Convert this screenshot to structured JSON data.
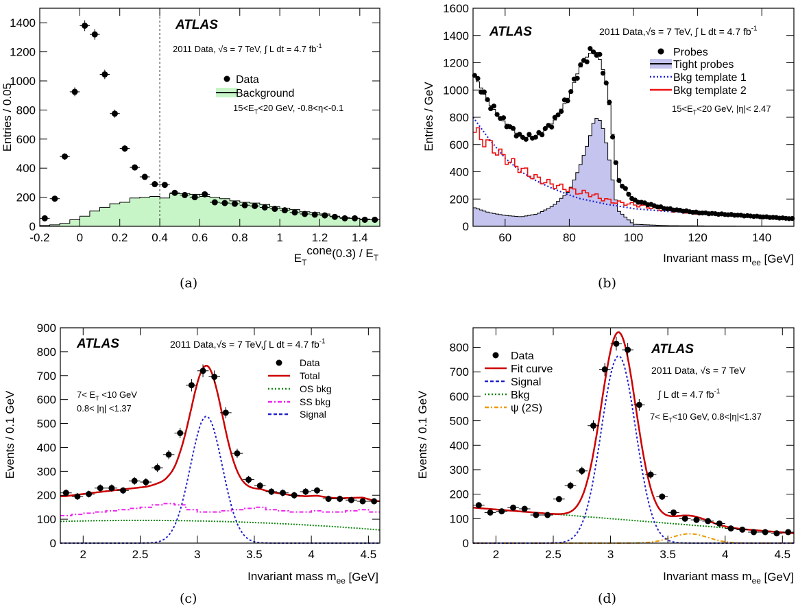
{
  "colors": {
    "data": "#000000",
    "bkg_fill": "#c8f5c8",
    "tight_fill": "#c4c4ee",
    "bkg1": "#1f1fd8",
    "bkg2": "#ee1111",
    "total": "#cc0000",
    "os_bkg": "#118811",
    "ss_bkg": "#ee22ee",
    "signal": "#2222cc",
    "psi2s": "#ee9900"
  },
  "captions": [
    "(a)",
    "(b)",
    "(c)",
    "(d)"
  ],
  "chart_data": [
    {
      "type": "bar",
      "caption": "(a)",
      "xlabel": "E_T^cone(0.3) / E_T",
      "ylabel": "Entries / 0.05",
      "xlim": [
        -0.2,
        1.5
      ],
      "ylim": [
        0,
        1500
      ],
      "xticks": [
        -0.2,
        0,
        0.2,
        0.4,
        0.6,
        0.8,
        1,
        1.2,
        1.4
      ],
      "xtick_labels": [
        "-0.2",
        "0",
        "0.2",
        "0.4",
        "0.6",
        "0.8",
        "1",
        "1.2",
        "1.4"
      ],
      "yticks": [
        0,
        200,
        400,
        600,
        800,
        1000,
        1200,
        1400
      ],
      "atlas_label": "ATLAS",
      "info_text": "2011 Data,    √s = 7 TeV,   ∫ L dt = 4.7 fb",
      "info_sup": "-1",
      "cut_text": "15<E_T<20 GeV, -0.8<η<-0.1",
      "legend": [
        {
          "label": "Data",
          "style": "marker"
        },
        {
          "label": "Background",
          "style": "fill"
        }
      ],
      "cut_line_x": 0.4,
      "data_x": [
        -0.175,
        -0.125,
        -0.075,
        -0.025,
        0.025,
        0.075,
        0.125,
        0.175,
        0.225,
        0.275,
        0.325,
        0.375,
        0.425,
        0.475,
        0.525,
        0.575,
        0.625,
        0.675,
        0.725,
        0.775,
        0.825,
        0.875,
        0.925,
        0.975,
        1.025,
        1.075,
        1.125,
        1.175,
        1.225,
        1.275,
        1.325,
        1.375,
        1.425,
        1.475
      ],
      "data_y": [
        55,
        190,
        480,
        925,
        1380,
        1320,
        1045,
        775,
        535,
        405,
        340,
        290,
        285,
        230,
        215,
        200,
        220,
        165,
        160,
        155,
        145,
        140,
        130,
        120,
        110,
        95,
        85,
        80,
        75,
        65,
        55,
        55,
        45,
        45
      ],
      "background_y": [
        5,
        10,
        20,
        45,
        70,
        105,
        130,
        155,
        165,
        195,
        200,
        205,
        195,
        225,
        225,
        220,
        205,
        200,
        190,
        175,
        165,
        160,
        150,
        135,
        125,
        115,
        100,
        95,
        85,
        70,
        60,
        55,
        50,
        45
      ]
    },
    {
      "type": "line",
      "caption": "(b)",
      "xlabel": "Invariant mass m_ee [GeV]",
      "ylabel": "Entries / GeV",
      "xlim": [
        50,
        150
      ],
      "ylim": [
        0,
        1600
      ],
      "xticks": [
        60,
        80,
        100,
        120,
        140
      ],
      "yticks": [
        0,
        200,
        400,
        600,
        800,
        1000,
        1200,
        1400,
        1600
      ],
      "atlas_label": "ATLAS",
      "info_text": "2011 Data,√s = 7 TeV, ∫ L dt = 4.7 fb",
      "info_sup": "-1",
      "cut_text": "15<E_T<20 GeV,  |η|< 2.47",
      "legend": [
        {
          "label": "Probes",
          "style": "marker"
        },
        {
          "label": "Tight probes",
          "style": "fill"
        },
        {
          "label": "Bkg template 1",
          "style": "dotted"
        },
        {
          "label": "Bkg template 2",
          "style": "solid"
        }
      ],
      "mass_x": [
        50,
        55,
        60,
        65,
        70,
        75,
        80,
        83,
        86,
        88,
        90,
        92,
        95,
        100,
        110,
        120,
        130,
        140,
        150
      ],
      "probes_y": [
        1130,
        900,
        760,
        650,
        660,
        760,
        960,
        1150,
        1260,
        1300,
        1200,
        1000,
        350,
        190,
        130,
        100,
        85,
        70,
        55
      ],
      "tight_y": [
        140,
        100,
        80,
        70,
        90,
        150,
        260,
        420,
        620,
        800,
        770,
        560,
        120,
        15,
        5,
        3,
        2,
        1,
        1
      ],
      "bkg1_y": [
        800,
        640,
        500,
        400,
        330,
        275,
        230,
        205,
        190,
        180,
        170,
        160,
        150,
        130,
        110,
        95,
        80,
        70,
        60
      ],
      "bkg2_y": [
        700,
        600,
        500,
        420,
        350,
        305,
        270,
        250,
        240,
        225,
        205,
        190,
        175,
        160,
        120,
        95,
        85,
        70,
        60
      ]
    },
    {
      "type": "line",
      "caption": "(c)",
      "xlabel": "Invariant mass m_ee [GeV]",
      "ylabel": "Events / 0.1 GeV",
      "xlim": [
        1.8,
        4.6
      ],
      "ylim": [
        0,
        900
      ],
      "xticks": [
        2,
        2.5,
        3,
        3.5,
        4,
        4.5
      ],
      "yticks": [
        0,
        100,
        200,
        300,
        400,
        500,
        600,
        700,
        800,
        900
      ],
      "atlas_label": "ATLAS",
      "info_text": "2011 Data,√s = 7 TeV,∫ L dt = 4.7 fb",
      "info_sup": "-1",
      "cut_text_1": "7< E_T <10 GeV",
      "cut_text_2": "0.8< |η| <1.37",
      "legend": [
        {
          "label": "Data",
          "style": "marker"
        },
        {
          "label": "Total",
          "style": "solid"
        },
        {
          "label": "OS bkg",
          "style": "dotted"
        },
        {
          "label": "SS bkg",
          "style": "dashdot"
        },
        {
          "label": "Signal",
          "style": "dashed"
        }
      ],
      "data_x": [
        1.85,
        1.95,
        2.05,
        2.15,
        2.25,
        2.35,
        2.45,
        2.55,
        2.65,
        2.75,
        2.85,
        2.95,
        3.05,
        3.15,
        3.25,
        3.35,
        3.45,
        3.55,
        3.65,
        3.75,
        3.85,
        3.95,
        4.05,
        4.15,
        4.25,
        4.35,
        4.45,
        4.55
      ],
      "data_y": [
        210,
        195,
        205,
        230,
        230,
        220,
        260,
        255,
        315,
        370,
        460,
        660,
        720,
        695,
        545,
        375,
        265,
        240,
        215,
        210,
        200,
        215,
        220,
        185,
        185,
        180,
        175,
        175
      ],
      "signal": {
        "mu": 3.08,
        "sigma": 0.14,
        "amp": 530
      },
      "os_bkg": {
        "peak": 95,
        "center": 2.5
      },
      "ss_bkg_y": [
        115,
        120,
        125,
        130,
        135,
        140,
        145,
        150,
        160,
        165,
        160,
        140,
        130,
        130,
        135,
        140,
        145,
        150,
        140,
        135,
        130,
        130,
        135,
        130,
        130,
        135,
        140,
        130
      ]
    },
    {
      "type": "line",
      "caption": "(d)",
      "xlabel": "Invariant mass m_ee [GeV]",
      "ylabel": "Events / 0.1 GeV",
      "xlim": [
        1.8,
        4.6
      ],
      "ylim": [
        0,
        880
      ],
      "xticks": [
        2,
        2.5,
        3,
        3.5,
        4,
        4.5
      ],
      "yticks": [
        0,
        100,
        200,
        300,
        400,
        500,
        600,
        700,
        800
      ],
      "atlas_label": "ATLAS",
      "info_text_1": "2011 Data, √s = 7 TeV",
      "info_text_2": "∫ L dt = 4.7 fb",
      "info_sup": "-1",
      "cut_text": "7< E_T<10 GeV, 0.8<|η|<1.37",
      "legend": [
        {
          "label": "Data",
          "style": "marker"
        },
        {
          "label": "Fit curve",
          "style": "solid"
        },
        {
          "label": "Signal",
          "style": "dashed"
        },
        {
          "label": "Bkg",
          "style": "dotted"
        },
        {
          "label": "ψ (2S)",
          "style": "dashdot"
        }
      ],
      "data_x": [
        1.85,
        1.95,
        2.05,
        2.15,
        2.25,
        2.35,
        2.45,
        2.55,
        2.65,
        2.75,
        2.85,
        2.95,
        3.05,
        3.15,
        3.25,
        3.35,
        3.45,
        3.55,
        3.65,
        3.75,
        3.85,
        3.95,
        4.05,
        4.15,
        4.25,
        4.35,
        4.45,
        4.55
      ],
      "data_y": [
        155,
        125,
        130,
        145,
        140,
        115,
        115,
        180,
        235,
        295,
        480,
        710,
        815,
        790,
        565,
        280,
        190,
        125,
        100,
        95,
        90,
        80,
        60,
        55,
        45,
        45,
        40,
        45
      ],
      "signal": {
        "mu": 3.07,
        "sigma": 0.15,
        "amp": 765
      },
      "bkg": {
        "start": 145,
        "end": 40
      },
      "psi2s": {
        "mu": 3.69,
        "sigma": 0.16,
        "amp": 38
      }
    }
  ]
}
